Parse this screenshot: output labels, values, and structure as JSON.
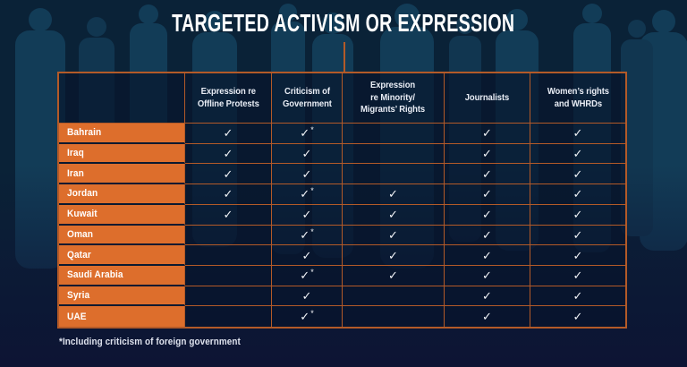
{
  "title": "TARGETED ACTIVISM OR EXPRESSION",
  "footnote": "*Including criticism of foreign government",
  "colors": {
    "background_navy": "#0a2237",
    "silhouette_blue": "#123c57",
    "bottom_navy": "#0d1434",
    "accent_orange": "#dd6e2c",
    "grid_line_orange": "#b35a28",
    "text_white": "#f2f4f8"
  },
  "chart_data": {
    "type": "table",
    "title": "TARGETED ACTIVISM OR EXPRESSION",
    "check_glyph": "✓",
    "columns": [
      "Expression re\nOffline Protests",
      "Criticism of\nGovernment",
      "Expression\nre Minority/\nMigrants’ Rights",
      "Journalists",
      "Women’s rights\nand WHRDs"
    ],
    "rows": [
      {
        "country": "Bahrain",
        "cells": [
          "✓",
          "✓*",
          "",
          "✓",
          "✓"
        ]
      },
      {
        "country": "Iraq",
        "cells": [
          "✓",
          "✓",
          "",
          "✓",
          "✓"
        ]
      },
      {
        "country": "Iran",
        "cells": [
          "✓",
          "✓",
          "",
          "✓",
          "✓"
        ]
      },
      {
        "country": "Jordan",
        "cells": [
          "✓",
          "✓*",
          "✓",
          "✓",
          "✓"
        ]
      },
      {
        "country": "Kuwait",
        "cells": [
          "✓",
          "✓",
          "✓",
          "✓",
          "✓"
        ]
      },
      {
        "country": "Oman",
        "cells": [
          "",
          "✓*",
          "✓",
          "✓",
          "✓"
        ]
      },
      {
        "country": "Qatar",
        "cells": [
          "",
          "✓",
          "✓",
          "✓",
          "✓"
        ]
      },
      {
        "country": "Saudi Arabia",
        "cells": [
          "",
          "✓*",
          "✓",
          "✓",
          "✓"
        ]
      },
      {
        "country": "Syria",
        "cells": [
          "",
          "✓",
          "",
          "✓",
          "✓"
        ]
      },
      {
        "country": "UAE",
        "cells": [
          "",
          "✓*",
          "",
          "✓",
          "✓"
        ]
      }
    ],
    "footnote": "*Including criticism of foreign government"
  }
}
